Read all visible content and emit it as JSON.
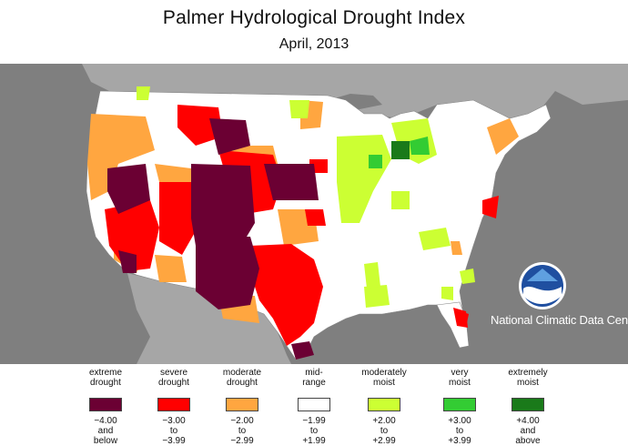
{
  "title": "Palmer Hydrological Drought Index",
  "subtitle": "April, 2013",
  "credit": "National Climatic Data Center",
  "logo_text": "NOAA",
  "legend": [
    {
      "label_line1": "extreme",
      "label_line2": "drought",
      "range_line1": "−4.00",
      "range_line2": "and",
      "range_line3": "below",
      "color": "#6b0033"
    },
    {
      "label_line1": "severe",
      "label_line2": "drought",
      "range_line1": "−3.00",
      "range_line2": "to",
      "range_line3": "−3.99",
      "color": "#ff0000"
    },
    {
      "label_line1": "moderate",
      "label_line2": "drought",
      "range_line1": "−2.00",
      "range_line2": "to",
      "range_line3": "−2.99",
      "color": "#ffa640"
    },
    {
      "label_line1": "mid-",
      "label_line2": "range",
      "range_line1": "−1.99",
      "range_line2": "to",
      "range_line3": "+1.99",
      "color": "#ffffff"
    },
    {
      "label_line1": "moderately",
      "label_line2": "moist",
      "range_line1": "+2.00",
      "range_line2": "to",
      "range_line3": "+2.99",
      "color": "#ccff33"
    },
    {
      "label_line1": "very",
      "label_line2": "moist",
      "range_line1": "+3.00",
      "range_line2": "to",
      "range_line3": "+3.99",
      "color": "#33cc33"
    },
    {
      "label_line1": "extremely",
      "label_line2": "moist",
      "range_line1": "+4.00",
      "range_line2": "and",
      "range_line3": "above",
      "color": "#1a7a1a"
    }
  ],
  "colors": {
    "background_gray": "#7f7f7f",
    "land_gray": "#a6a6a6",
    "water_gray": "#8c8c8c",
    "extreme_drought": "#6b0033",
    "severe_drought": "#ff0000",
    "moderate_drought": "#ffa640",
    "mid_range": "#ffffff",
    "moderately_moist": "#ccff33",
    "very_moist": "#33cc33",
    "extremely_moist": "#1a7a1a"
  }
}
